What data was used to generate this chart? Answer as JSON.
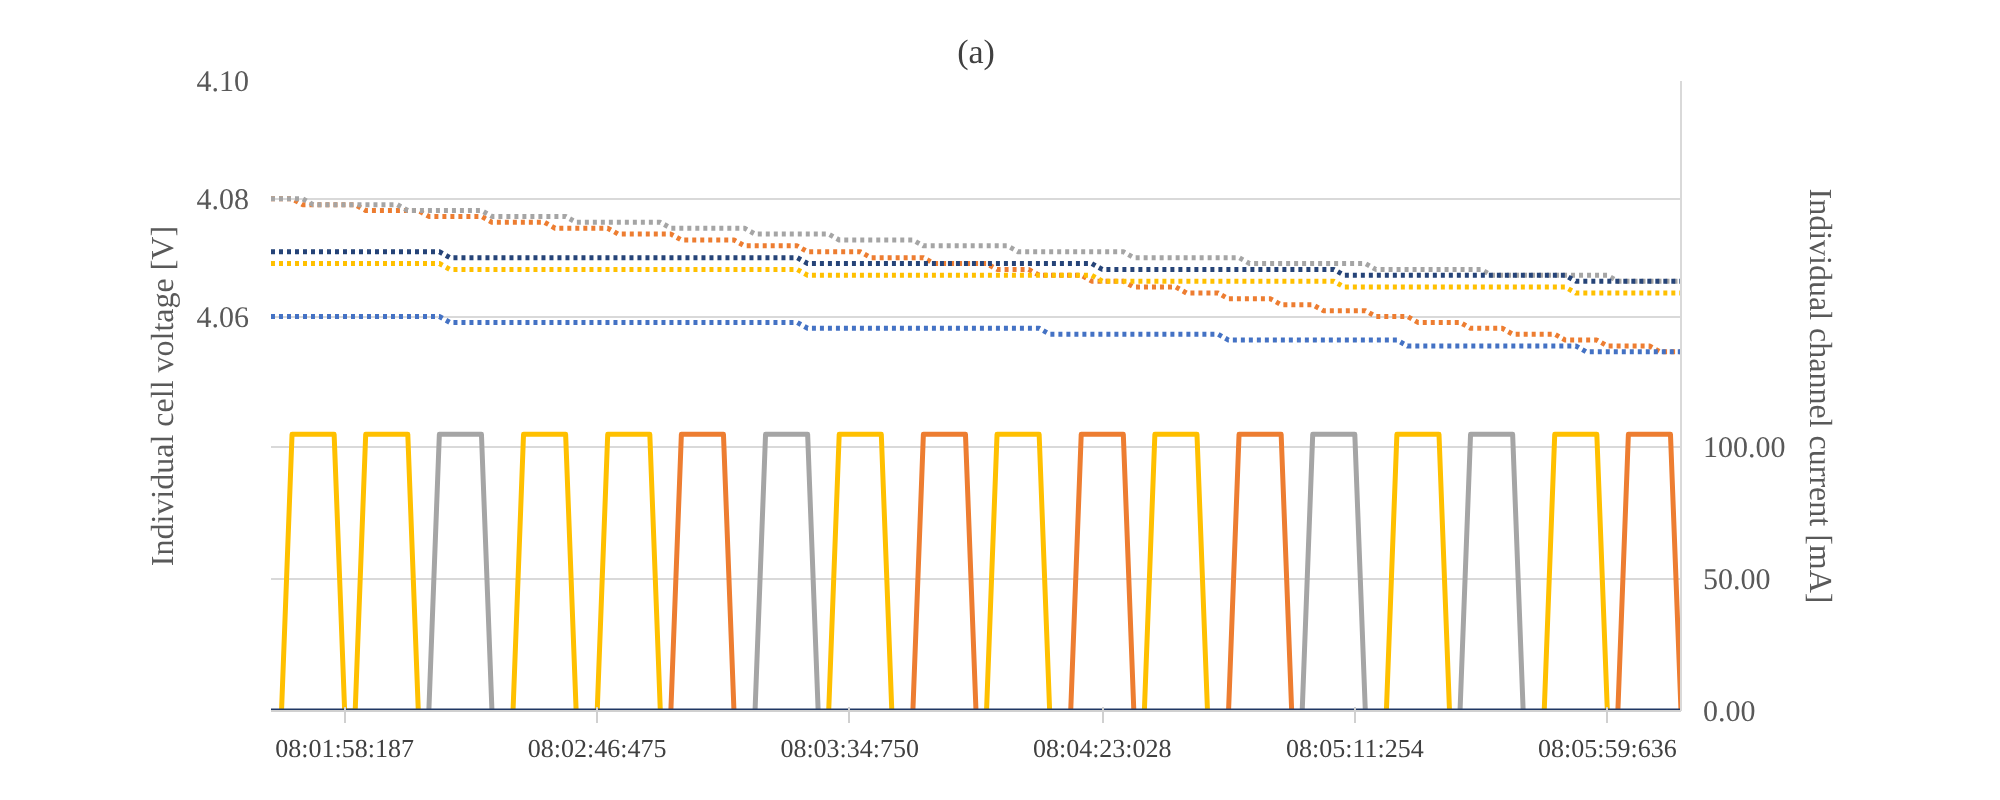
{
  "chart_data": {
    "type": "line",
    "title": "(a)",
    "ylabel": "Individual cell voltage [V]",
    "y2label": "Individual channel current [mA]",
    "categories": [
      null,
      null,
      null,
      null,
      null,
      null,
      null,
      "08:01:58:187",
      null,
      null,
      null,
      null,
      null,
      null,
      null,
      null,
      null,
      null,
      null,
      null,
      null,
      null,
      null,
      null,
      null,
      null,
      null,
      null,
      null,
      null,
      null,
      "08:02:46:475",
      null,
      null,
      null,
      null,
      null,
      null,
      null,
      null,
      null,
      null,
      null,
      null,
      null,
      null,
      null,
      null,
      null,
      null,
      null,
      null,
      null,
      null,
      null,
      "08:03:34:750",
      null,
      null,
      null,
      null,
      null,
      null,
      null,
      null,
      null,
      null,
      null,
      null,
      null,
      null,
      null,
      null,
      null,
      null,
      null,
      null,
      null,
      null,
      null,
      "08:04:23:028",
      null,
      null,
      null,
      null,
      null,
      null,
      null,
      null,
      null,
      null,
      null,
      null,
      null,
      null,
      null,
      null,
      null,
      null,
      null,
      null,
      null,
      null,
      null,
      "08:05:11:254",
      null,
      null,
      null,
      null,
      null,
      null,
      null,
      null,
      null,
      null,
      null,
      null,
      null,
      null,
      null,
      null,
      null,
      null,
      null,
      null,
      null,
      null,
      null,
      "08:05:59:636",
      null,
      null,
      null,
      null,
      null,
      null,
      null
    ],
    "ylim": [
      3.993,
      4.1
    ],
    "yticks": [
      {
        "value": 4.06,
        "label": "4.06"
      },
      {
        "value": 4.08,
        "label": "4.08"
      },
      {
        "value": 4.1,
        "label": "4.10"
      }
    ],
    "y2lim": [
      0,
      239
    ],
    "y2ticks": [
      {
        "value": 0,
        "label": "0.00"
      },
      {
        "value": 50,
        "label": "50.00"
      },
      {
        "value": 100,
        "label": "100.00"
      }
    ],
    "grid": "y",
    "marker": "none",
    "series": [
      {
        "color": "#ed7d31",
        "line_style": "dotted",
        "values": [
          4.08,
          4.08,
          4.08,
          4.079,
          4.079,
          4.079,
          4.079,
          4.079,
          4.079,
          4.078,
          4.078,
          4.078,
          4.078,
          4.078,
          4.078,
          4.077,
          4.077,
          4.077,
          4.077,
          4.077,
          4.077,
          4.076,
          4.076,
          4.076,
          4.076,
          4.076,
          4.076,
          4.075,
          4.075,
          4.075,
          4.075,
          4.075,
          4.075,
          4.074,
          4.074,
          4.074,
          4.074,
          4.074,
          4.074,
          4.073,
          4.073,
          4.073,
          4.073,
          4.073,
          4.073,
          4.072,
          4.072,
          4.072,
          4.072,
          4.072,
          4.072,
          4.071,
          4.071,
          4.071,
          4.071,
          4.071,
          4.071,
          4.07,
          4.07,
          4.07,
          4.07,
          4.07,
          4.07,
          4.069,
          4.069,
          4.069,
          4.069,
          4.069,
          4.069,
          4.068,
          4.068,
          4.068,
          4.068,
          4.067,
          4.067,
          4.067,
          4.067,
          4.067,
          4.066,
          4.066,
          4.066,
          4.066,
          4.065,
          4.065,
          4.065,
          4.065,
          4.065,
          4.064,
          4.064,
          4.064,
          4.064,
          4.063,
          4.063,
          4.063,
          4.063,
          4.063,
          4.062,
          4.062,
          4.062,
          4.062,
          4.061,
          4.061,
          4.061,
          4.061,
          4.061,
          4.06,
          4.06,
          4.06,
          4.06,
          4.059,
          4.059,
          4.059,
          4.059,
          4.059,
          4.058,
          4.058,
          4.058,
          4.058,
          4.057,
          4.057,
          4.057,
          4.057,
          4.057,
          4.056,
          4.056,
          4.056,
          4.056,
          4.055,
          4.055,
          4.055,
          4.055,
          4.055,
          4.054,
          4.054,
          4.054
        ]
      },
      {
        "color": "#a5a5a5",
        "line_style": "dotted",
        "values": [
          4.08,
          4.08,
          4.08,
          4.08,
          4.079,
          4.079,
          4.079,
          4.079,
          4.079,
          4.079,
          4.079,
          4.079,
          4.079,
          4.078,
          4.078,
          4.078,
          4.078,
          4.078,
          4.078,
          4.078,
          4.078,
          4.077,
          4.077,
          4.077,
          4.077,
          4.077,
          4.077,
          4.077,
          4.077,
          4.076,
          4.076,
          4.076,
          4.076,
          4.076,
          4.076,
          4.076,
          4.076,
          4.076,
          4.075,
          4.075,
          4.075,
          4.075,
          4.075,
          4.075,
          4.075,
          4.075,
          4.074,
          4.074,
          4.074,
          4.074,
          4.074,
          4.074,
          4.074,
          4.074,
          4.073,
          4.073,
          4.073,
          4.073,
          4.073,
          4.073,
          4.073,
          4.073,
          4.072,
          4.072,
          4.072,
          4.072,
          4.072,
          4.072,
          4.072,
          4.072,
          4.072,
          4.071,
          4.071,
          4.071,
          4.071,
          4.071,
          4.071,
          4.071,
          4.071,
          4.071,
          4.071,
          4.071,
          4.07,
          4.07,
          4.07,
          4.07,
          4.07,
          4.07,
          4.07,
          4.07,
          4.07,
          4.07,
          4.07,
          4.069,
          4.069,
          4.069,
          4.069,
          4.069,
          4.069,
          4.069,
          4.069,
          4.069,
          4.069,
          4.069,
          4.069,
          4.068,
          4.068,
          4.068,
          4.068,
          4.068,
          4.068,
          4.068,
          4.068,
          4.068,
          4.068,
          4.068,
          4.067,
          4.067,
          4.067,
          4.067,
          4.067,
          4.067,
          4.067,
          4.067,
          4.067,
          4.067,
          4.067,
          4.067,
          4.066,
          4.066,
          4.066,
          4.066,
          4.066,
          4.066,
          4.066
        ]
      },
      {
        "color": "#264478",
        "line_style": "dotted",
        "values": [
          4.071,
          4.071,
          4.071,
          4.071,
          4.071,
          4.071,
          4.071,
          4.071,
          4.071,
          4.071,
          4.071,
          4.071,
          4.071,
          4.071,
          4.071,
          4.071,
          4.071,
          4.07,
          4.07,
          4.07,
          4.07,
          4.07,
          4.07,
          4.07,
          4.07,
          4.07,
          4.07,
          4.07,
          4.07,
          4.07,
          4.07,
          4.07,
          4.07,
          4.07,
          4.07,
          4.07,
          4.07,
          4.07,
          4.07,
          4.07,
          4.07,
          4.07,
          4.07,
          4.07,
          4.07,
          4.07,
          4.07,
          4.07,
          4.07,
          4.07,
          4.07,
          4.069,
          4.069,
          4.069,
          4.069,
          4.069,
          4.069,
          4.069,
          4.069,
          4.069,
          4.069,
          4.069,
          4.069,
          4.069,
          4.069,
          4.069,
          4.069,
          4.069,
          4.069,
          4.069,
          4.069,
          4.069,
          4.069,
          4.069,
          4.069,
          4.069,
          4.069,
          4.069,
          4.069,
          4.068,
          4.068,
          4.068,
          4.068,
          4.068,
          4.068,
          4.068,
          4.068,
          4.068,
          4.068,
          4.068,
          4.068,
          4.068,
          4.068,
          4.068,
          4.068,
          4.068,
          4.068,
          4.068,
          4.068,
          4.068,
          4.068,
          4.068,
          4.067,
          4.067,
          4.067,
          4.067,
          4.067,
          4.067,
          4.067,
          4.067,
          4.067,
          4.067,
          4.067,
          4.067,
          4.067,
          4.067,
          4.067,
          4.067,
          4.067,
          4.067,
          4.067,
          4.067,
          4.067,
          4.067,
          4.066,
          4.066,
          4.066,
          4.066,
          4.066,
          4.066,
          4.066,
          4.066,
          4.066,
          4.066,
          4.066
        ]
      },
      {
        "color": "#ffc000",
        "line_style": "dotted",
        "values": [
          4.069,
          4.069,
          4.069,
          4.069,
          4.069,
          4.069,
          4.069,
          4.069,
          4.069,
          4.069,
          4.069,
          4.069,
          4.069,
          4.069,
          4.069,
          4.069,
          4.069,
          4.068,
          4.068,
          4.068,
          4.068,
          4.068,
          4.068,
          4.068,
          4.068,
          4.068,
          4.068,
          4.068,
          4.068,
          4.068,
          4.068,
          4.068,
          4.068,
          4.068,
          4.068,
          4.068,
          4.068,
          4.068,
          4.068,
          4.068,
          4.068,
          4.068,
          4.068,
          4.068,
          4.068,
          4.068,
          4.068,
          4.068,
          4.068,
          4.068,
          4.068,
          4.067,
          4.067,
          4.067,
          4.067,
          4.067,
          4.067,
          4.067,
          4.067,
          4.067,
          4.067,
          4.067,
          4.067,
          4.067,
          4.067,
          4.067,
          4.067,
          4.067,
          4.067,
          4.067,
          4.067,
          4.067,
          4.067,
          4.067,
          4.067,
          4.067,
          4.067,
          4.067,
          4.067,
          4.066,
          4.066,
          4.066,
          4.066,
          4.066,
          4.066,
          4.066,
          4.066,
          4.066,
          4.066,
          4.066,
          4.066,
          4.066,
          4.066,
          4.066,
          4.066,
          4.066,
          4.066,
          4.066,
          4.066,
          4.066,
          4.066,
          4.066,
          4.065,
          4.065,
          4.065,
          4.065,
          4.065,
          4.065,
          4.065,
          4.065,
          4.065,
          4.065,
          4.065,
          4.065,
          4.065,
          4.065,
          4.065,
          4.065,
          4.065,
          4.065,
          4.065,
          4.065,
          4.065,
          4.065,
          4.064,
          4.064,
          4.064,
          4.064,
          4.064,
          4.064,
          4.064,
          4.064,
          4.064,
          4.064,
          4.064
        ]
      },
      {
        "color": "#4472c4",
        "line_style": "dotted",
        "values": [
          4.06,
          4.06,
          4.06,
          4.06,
          4.06,
          4.06,
          4.06,
          4.06,
          4.06,
          4.06,
          4.06,
          4.06,
          4.06,
          4.06,
          4.06,
          4.06,
          4.06,
          4.059,
          4.059,
          4.059,
          4.059,
          4.059,
          4.059,
          4.059,
          4.059,
          4.059,
          4.059,
          4.059,
          4.059,
          4.059,
          4.059,
          4.059,
          4.059,
          4.059,
          4.059,
          4.059,
          4.059,
          4.059,
          4.059,
          4.059,
          4.059,
          4.059,
          4.059,
          4.059,
          4.059,
          4.059,
          4.059,
          4.059,
          4.059,
          4.059,
          4.059,
          4.058,
          4.058,
          4.058,
          4.058,
          4.058,
          4.058,
          4.058,
          4.058,
          4.058,
          4.058,
          4.058,
          4.058,
          4.058,
          4.058,
          4.058,
          4.058,
          4.058,
          4.058,
          4.058,
          4.058,
          4.058,
          4.058,
          4.058,
          4.057,
          4.057,
          4.057,
          4.057,
          4.057,
          4.057,
          4.057,
          4.057,
          4.057,
          4.057,
          4.057,
          4.057,
          4.057,
          4.057,
          4.057,
          4.057,
          4.057,
          4.056,
          4.056,
          4.056,
          4.056,
          4.056,
          4.056,
          4.056,
          4.056,
          4.056,
          4.056,
          4.056,
          4.056,
          4.056,
          4.056,
          4.056,
          4.056,
          4.056,
          4.055,
          4.055,
          4.055,
          4.055,
          4.055,
          4.055,
          4.055,
          4.055,
          4.055,
          4.055,
          4.055,
          4.055,
          4.055,
          4.055,
          4.055,
          4.055,
          4.055,
          4.054,
          4.054,
          4.054,
          4.054,
          4.054,
          4.054,
          4.054,
          4.054,
          4.054,
          4.054
        ]
      },
      {
        "color": "#ffc000",
        "line_style": "solid",
        "axis": "y2",
        "values": [
          null,
          0,
          105,
          105,
          105,
          105,
          105,
          0,
          0,
          105,
          105,
          105,
          105,
          105,
          0,
          null,
          null,
          null,
          null,
          null,
          null,
          null,
          null,
          0,
          105,
          105,
          105,
          105,
          105,
          0,
          null,
          0,
          105,
          105,
          105,
          105,
          105,
          0,
          null,
          null,
          null,
          null,
          null,
          null,
          null,
          null,
          null,
          null,
          null,
          null,
          null,
          null,
          null,
          0,
          105,
          105,
          105,
          105,
          105,
          0,
          null,
          null,
          null,
          null,
          null,
          null,
          null,
          null,
          0,
          105,
          105,
          105,
          105,
          105,
          0,
          null,
          null,
          null,
          null,
          null,
          null,
          null,
          null,
          0,
          105,
          105,
          105,
          105,
          105,
          0,
          null,
          null,
          null,
          null,
          null,
          null,
          null,
          null,
          null,
          null,
          null,
          null,
          null,
          null,
          null,
          null,
          0,
          105,
          105,
          105,
          105,
          105,
          0,
          null,
          null,
          null,
          null,
          null,
          null,
          null,
          null,
          0,
          105,
          105,
          105,
          105,
          105,
          0,
          null,
          null,
          null,
          null,
          null,
          null,
          null
        ]
      },
      {
        "color": "#a5a5a5",
        "line_style": "solid",
        "axis": "y2",
        "values": [
          null,
          null,
          null,
          null,
          null,
          null,
          null,
          null,
          null,
          null,
          null,
          null,
          null,
          null,
          null,
          0,
          105,
          105,
          105,
          105,
          105,
          0,
          null,
          null,
          null,
          null,
          null,
          null,
          null,
          null,
          null,
          null,
          null,
          null,
          null,
          null,
          null,
          null,
          null,
          null,
          null,
          null,
          null,
          null,
          null,
          null,
          0,
          105,
          105,
          105,
          105,
          105,
          0,
          null,
          null,
          null,
          null,
          null,
          null,
          null,
          null,
          null,
          null,
          null,
          null,
          null,
          null,
          null,
          null,
          null,
          null,
          null,
          null,
          null,
          null,
          null,
          null,
          null,
          null,
          null,
          null,
          null,
          null,
          null,
          null,
          null,
          null,
          null,
          null,
          null,
          null,
          null,
          null,
          null,
          null,
          null,
          null,
          null,
          0,
          105,
          105,
          105,
          105,
          105,
          0,
          null,
          null,
          null,
          null,
          null,
          null,
          null,
          null,
          0,
          105,
          105,
          105,
          105,
          105,
          0,
          null,
          null,
          null,
          null,
          null,
          null,
          null,
          null,
          null,
          null,
          null,
          null,
          null,
          null,
          null
        ]
      },
      {
        "color": "#ed7d31",
        "line_style": "solid",
        "axis": "y2",
        "values": [
          null,
          null,
          null,
          null,
          null,
          null,
          null,
          null,
          null,
          null,
          null,
          null,
          null,
          null,
          null,
          null,
          null,
          null,
          null,
          null,
          null,
          null,
          null,
          null,
          null,
          null,
          null,
          null,
          null,
          null,
          null,
          null,
          null,
          null,
          null,
          null,
          null,
          null,
          0,
          105,
          105,
          105,
          105,
          105,
          0,
          null,
          null,
          null,
          null,
          null,
          null,
          null,
          null,
          null,
          null,
          null,
          null,
          null,
          null,
          null,
          null,
          0,
          105,
          105,
          105,
          105,
          105,
          0,
          null,
          null,
          null,
          null,
          null,
          null,
          null,
          null,
          0,
          105,
          105,
          105,
          105,
          105,
          0,
          null,
          null,
          null,
          null,
          null,
          null,
          null,
          null,
          0,
          105,
          105,
          105,
          105,
          105,
          0,
          null,
          null,
          null,
          null,
          null,
          null,
          null,
          null,
          null,
          null,
          null,
          null,
          null,
          null,
          null,
          null,
          null,
          null,
          null,
          null,
          null,
          null,
          null,
          null,
          null,
          null,
          null,
          null,
          null,
          null,
          0,
          105,
          105,
          105,
          105,
          105,
          0
        ]
      },
      {
        "color": "#203864",
        "line_style": "solid",
        "axis": "y2",
        "values": [
          0,
          0,
          0,
          0,
          0,
          0,
          0,
          0,
          0,
          0,
          0,
          0,
          0,
          0,
          0,
          0,
          0,
          0,
          0,
          0,
          0,
          0,
          0,
          0,
          0,
          0,
          0,
          0,
          0,
          0,
          0,
          0,
          0,
          0,
          0,
          0,
          0,
          0,
          0,
          0,
          0,
          0,
          0,
          0,
          0,
          0,
          0,
          0,
          0,
          0,
          0,
          0,
          0,
          0,
          0,
          0,
          0,
          0,
          0,
          0,
          0,
          0,
          0,
          0,
          0,
          0,
          0,
          0,
          0,
          0,
          0,
          0,
          0,
          0,
          0,
          0,
          0,
          0,
          0,
          0,
          0,
          0,
          0,
          0,
          0,
          0,
          0,
          0,
          0,
          0,
          0,
          0,
          0,
          0,
          0,
          0,
          0,
          0,
          0,
          0,
          0,
          0,
          0,
          0,
          0,
          0,
          0,
          0,
          0,
          0,
          0,
          0,
          0,
          0,
          0,
          0,
          0,
          0,
          0,
          0,
          0,
          0,
          0,
          0,
          0,
          0,
          0,
          0,
          0,
          0,
          0,
          0,
          0,
          0,
          0
        ]
      }
    ]
  }
}
